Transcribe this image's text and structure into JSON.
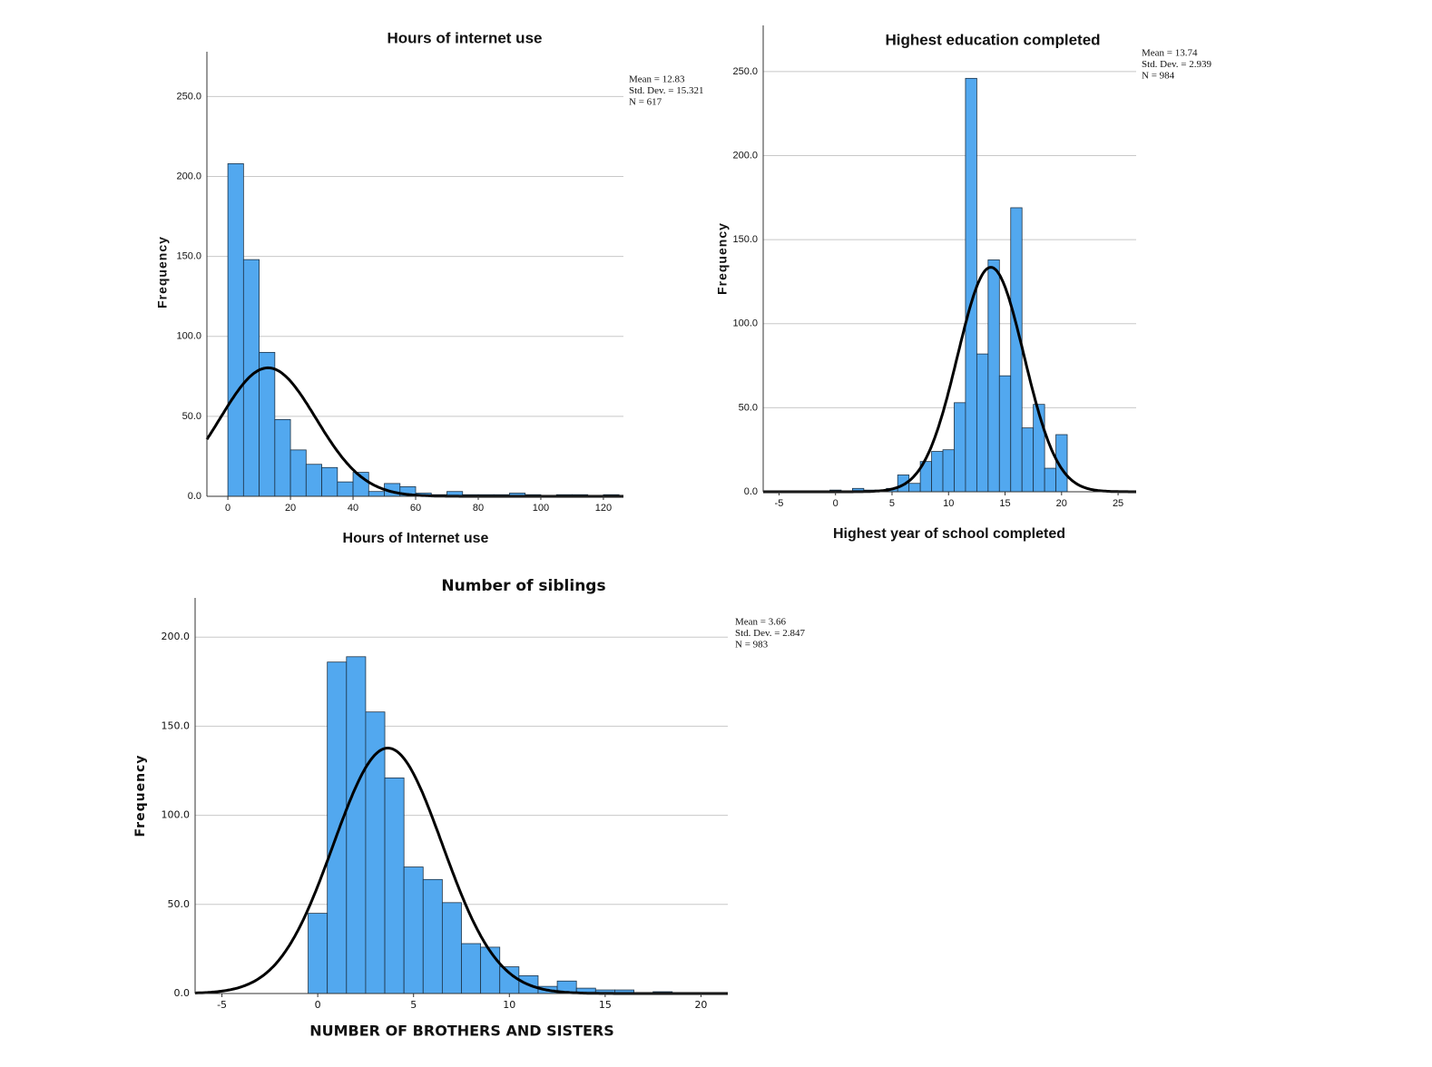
{
  "chart_data": [
    {
      "type": "histogram",
      "title": "Hours of internet use",
      "x_label": "Hours of Internet use",
      "y_label": "Frequency",
      "bins": [
        0,
        5,
        10,
        15,
        20,
        25,
        30,
        35,
        40,
        45,
        50,
        55,
        60,
        65,
        70,
        75,
        80,
        85,
        90,
        95,
        100,
        105,
        110,
        115,
        120,
        125
      ],
      "values": [
        208,
        148,
        90,
        48,
        29,
        20,
        18,
        9,
        15,
        3,
        8,
        6,
        2,
        1,
        3,
        1,
        1,
        1,
        2,
        1,
        0,
        1,
        1,
        0,
        1
      ],
      "color": "#52a8ef",
      "xlim": [
        -6.7,
        126.4
      ],
      "xticks": [
        0,
        20,
        40,
        60,
        80,
        100,
        120
      ],
      "ylim": [
        0,
        278
      ],
      "yticks": [
        {
          "value": 0,
          "label": "0.0"
        },
        {
          "value": 50,
          "label": "50.0"
        },
        {
          "value": 100,
          "label": "100.0"
        },
        {
          "value": 150,
          "label": "150.0"
        },
        {
          "value": 200,
          "label": "200.0"
        },
        {
          "value": 250,
          "label": "250.0"
        }
      ],
      "grid": true,
      "stats": [
        {
          "value": 12.83,
          "label": "Mean = 12.83"
        },
        {
          "value": 15.321,
          "label": "Std. Dev. = 15.321"
        },
        {
          "value": 617,
          "label": "N = 617"
        }
      ]
    },
    {
      "type": "histogram",
      "title": "Highest education completed",
      "x_label": "Highest year of school completed",
      "y_label": "Frequency",
      "bins": [
        -0.5,
        0.5,
        1.5,
        2.5,
        3.5,
        4.5,
        5.5,
        6.5,
        7.5,
        8.5,
        9.5,
        10.5,
        11.5,
        12.5,
        13.5,
        14.5,
        15.5,
        16.5,
        17.5,
        18.5,
        19.5,
        20.5
      ],
      "values": [
        1,
        0,
        2,
        1,
        1,
        2,
        10,
        5,
        18,
        24,
        25,
        53,
        246,
        82,
        138,
        69,
        169,
        38,
        52,
        14,
        34
      ],
      "color": "#52a8ef",
      "xlim": [
        -6.4,
        26.6
      ],
      "xticks": [
        -5,
        0,
        5,
        10,
        15,
        20,
        25
      ],
      "ylim": [
        0,
        277.5
      ],
      "yticks": [
        {
          "value": 0,
          "label": "0.0"
        },
        {
          "value": 50,
          "label": "50.0"
        },
        {
          "value": 100,
          "label": "100.0"
        },
        {
          "value": 150,
          "label": "150.0"
        },
        {
          "value": 200,
          "label": "200.0"
        },
        {
          "value": 250,
          "label": "250.0"
        }
      ],
      "grid": true,
      "stats": [
        {
          "value": 13.74,
          "label": "Mean = 13.74"
        },
        {
          "value": 2.939,
          "label": "Std. Dev. = 2.939"
        },
        {
          "value": 984,
          "label": "N = 984"
        }
      ]
    },
    {
      "type": "histogram",
      "title": "Number of siblings",
      "x_label": "NUMBER OF BROTHERS AND SISTERS",
      "y_label": "Frequency",
      "bins": [
        -0.5,
        0.5,
        1.5,
        2.5,
        3.5,
        4.5,
        5.5,
        6.5,
        7.5,
        8.5,
        9.5,
        10.5,
        11.5,
        12.5,
        13.5,
        14.5,
        15.5,
        16.5,
        17.5,
        18.5
      ],
      "values": [
        45,
        186,
        189,
        158,
        121,
        71,
        64,
        51,
        28,
        26,
        15,
        10,
        4,
        7,
        3,
        2,
        2,
        0,
        1
      ],
      "color": "#52a8ef",
      "xlim": [
        -6.4,
        21.4
      ],
      "xticks": [
        -5,
        0,
        5,
        10,
        15,
        20
      ],
      "ylim": [
        0,
        222
      ],
      "yticks": [
        {
          "value": 0,
          "label": "0.0"
        },
        {
          "value": 50,
          "label": "50.0"
        },
        {
          "value": 100,
          "label": "100.0"
        },
        {
          "value": 150,
          "label": "150.0"
        },
        {
          "value": 200,
          "label": "200.0"
        }
      ],
      "grid": true,
      "stats": [
        {
          "value": 3.66,
          "label": "Mean = 3.66"
        },
        {
          "value": 2.847,
          "label": "Std. Dev. = 2.847"
        },
        {
          "value": 983,
          "label": "N = 983"
        }
      ]
    }
  ]
}
